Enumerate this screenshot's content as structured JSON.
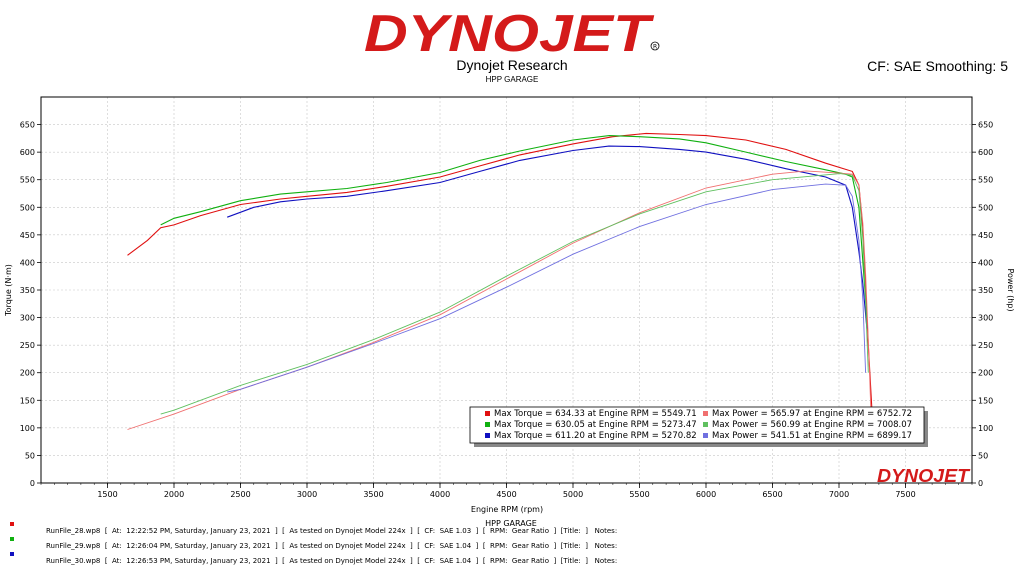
{
  "header": {
    "logo_text": "DYNOJET",
    "title": "Dynojet Research",
    "subtitle": "HPP GARAGE",
    "cf_smoothing": "CF: SAE Smoothing: 5"
  },
  "colors": {
    "red": "#e01010",
    "green": "#10b010",
    "blue": "#1010c0",
    "red_light": "#f07070",
    "green_light": "#60c060",
    "blue_light": "#7070e0"
  },
  "chart_data": {
    "type": "line",
    "xlabel": "Engine RPM (rpm)",
    "ylabel_left": "Torque (N·m)",
    "ylabel_right": "Power (hp)",
    "xlim": [
      1000,
      8000
    ],
    "ylim_left": [
      0,
      700
    ],
    "ylim_right": [
      0,
      700
    ],
    "x_ticks": [
      1500,
      2000,
      2500,
      3000,
      3500,
      4000,
      4500,
      5000,
      5500,
      6000,
      6500,
      7000,
      7500
    ],
    "y_ticks_left": [
      0,
      50,
      100,
      150,
      200,
      250,
      300,
      350,
      400,
      450,
      500,
      550,
      600,
      650
    ],
    "y_ticks_right": [
      0,
      50,
      100,
      150,
      200,
      250,
      300,
      350,
      400,
      450,
      500,
      550,
      600,
      650
    ],
    "grid": true,
    "legend_position": "bottom-right",
    "legend": [
      {
        "text": "Max Torque = 634.33 at Engine RPM = 5549.71",
        "color": "#e01010"
      },
      {
        "text": "Max Power = 565.97 at Engine RPM = 6752.72",
        "color": "#f07070"
      },
      {
        "text": "Max Torque = 630.05 at Engine RPM = 5273.47",
        "color": "#10b010"
      },
      {
        "text": "Max Power = 560.99 at Engine RPM = 7008.07",
        "color": "#60c060"
      },
      {
        "text": "Max Torque = 611.20 at Engine RPM = 5270.82",
        "color": "#1010c0"
      },
      {
        "text": "Max Power = 541.51 at Engine RPM = 6899.17",
        "color": "#7070e0"
      }
    ],
    "series": [
      {
        "kind": "torque",
        "color": "#e01010",
        "x": [
          1650,
          1800,
          1900,
          2000,
          2200,
          2500,
          2800,
          3000,
          3300,
          3600,
          4000,
          4300,
          4600,
          5000,
          5300,
          5550,
          5800,
          6000,
          6300,
          6600,
          6900,
          7100,
          7150,
          7180,
          7200,
          7220,
          7250
        ],
        "y": [
          413,
          440,
          463,
          468,
          485,
          505,
          515,
          520,
          527,
          538,
          555,
          575,
          595,
          615,
          628,
          634,
          632,
          630,
          622,
          605,
          580,
          565,
          540,
          460,
          350,
          250,
          120
        ]
      },
      {
        "kind": "torque",
        "color": "#10b010",
        "x": [
          1900,
          2000,
          2200,
          2500,
          2800,
          3000,
          3300,
          3600,
          4000,
          4300,
          4600,
          5000,
          5273,
          5500,
          5800,
          6000,
          6300,
          6600,
          6900,
          7050,
          7100,
          7150,
          7180,
          7210
        ],
        "y": [
          468,
          480,
          492,
          512,
          524,
          528,
          534,
          545,
          563,
          585,
          602,
          622,
          630,
          628,
          624,
          617,
          600,
          583,
          568,
          560,
          555,
          500,
          400,
          300
        ]
      },
      {
        "kind": "torque",
        "color": "#1010c0",
        "x": [
          2400,
          2600,
          2800,
          3000,
          3300,
          3600,
          4000,
          4300,
          4600,
          5000,
          5270,
          5500,
          5800,
          6000,
          6300,
          6600,
          6900,
          7050,
          7100,
          7150,
          7180,
          7210
        ],
        "y": [
          482,
          500,
          510,
          515,
          520,
          530,
          545,
          565,
          585,
          603,
          611,
          610,
          605,
          600,
          587,
          570,
          555,
          540,
          500,
          420,
          360,
          280
        ]
      },
      {
        "kind": "power",
        "color": "#f07070",
        "x": [
          1650,
          2000,
          2500,
          3000,
          3500,
          4000,
          4500,
          5000,
          5500,
          6000,
          6500,
          6752,
          7000,
          7100,
          7150,
          7180,
          7200,
          7220,
          7240
        ],
        "y": [
          97,
          125,
          170,
          210,
          255,
          305,
          370,
          435,
          490,
          535,
          560,
          566,
          562,
          560,
          540,
          470,
          380,
          260,
          130
        ]
      },
      {
        "kind": "power",
        "color": "#60c060",
        "x": [
          1900,
          2000,
          2500,
          3000,
          3500,
          4000,
          4500,
          5000,
          5500,
          6000,
          6500,
          7008,
          7100,
          7150,
          7180,
          7200,
          7220
        ],
        "y": [
          125,
          132,
          177,
          215,
          260,
          310,
          375,
          438,
          488,
          528,
          550,
          561,
          558,
          530,
          440,
          330,
          200
        ]
      },
      {
        "kind": "power",
        "color": "#7070e0",
        "x": [
          2400,
          2500,
          3000,
          3500,
          4000,
          4500,
          5000,
          5500,
          6000,
          6500,
          6899,
          7050,
          7100,
          7150,
          7180,
          7200
        ],
        "y": [
          165,
          170,
          210,
          253,
          298,
          355,
          415,
          465,
          505,
          532,
          542,
          540,
          520,
          440,
          330,
          200
        ]
      }
    ]
  },
  "x_title_dup": "HPP GARAGE",
  "watermark_text": "DYNOJET",
  "runfiles": [
    {
      "color": "#e01010",
      "text": "RunFile_28.wp8  [  At:  12:22:52 PM, Saturday, January 23, 2021  ]  [  As tested on Dynojet Model 224x  ]  [  CF:  SAE 1.03  ]  [  RPM:  Gear Ratio  ]  [Title:  ]   Notes:"
    },
    {
      "color": "#10b010",
      "text": "RunFile_29.wp8  [  At:  12:26:04 PM, Saturday, January 23, 2021  ]  [  As tested on Dynojet Model 224x  ]  [  CF:  SAE 1.04  ]  [  RPM:  Gear Ratio  ]  [Title:  ]   Notes:"
    },
    {
      "color": "#1010c0",
      "text": "RunFile_30.wp8  [  At:  12:26:53 PM, Saturday, January 23, 2021  ]  [  As tested on Dynojet Model 224x  ]  [  CF:  SAE 1.04  ]  [  RPM:  Gear Ratio  ]  [Title:  ]   Notes:"
    }
  ]
}
